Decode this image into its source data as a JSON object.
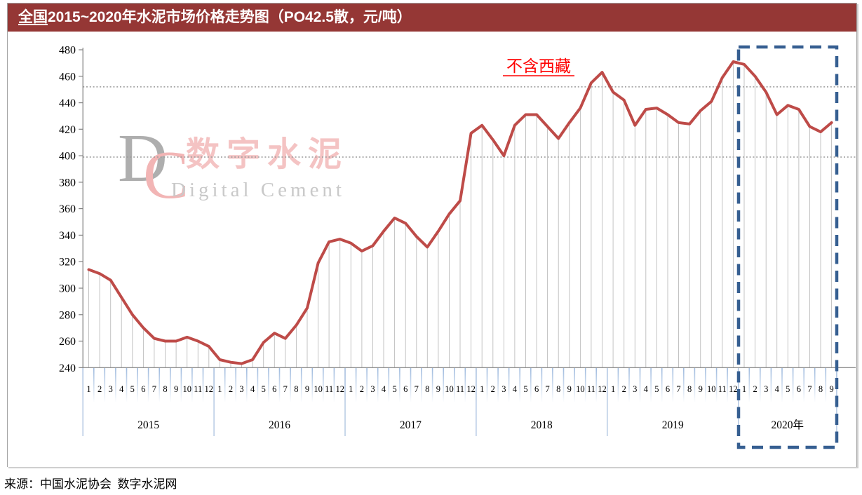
{
  "title": {
    "highlight": "全国",
    "text": "2015~2020年水泥市场价格走势图（PO42.5散，元/吨）"
  },
  "annotation": "不含西藏",
  "source": "来源：中国水泥协会  数字水泥网",
  "watermark": {
    "initial_d": "D",
    "initial_c": "C",
    "cn": "数字水泥",
    "en": "Digital Cement"
  },
  "colors": {
    "title_bar": "#953735",
    "title_text": "#ffffff",
    "line": "#be4b48",
    "drop_line": "#bdbdbd",
    "axis": "#7f7f7f",
    "gridline_dotted": "#9a9a9a",
    "month_tick": "#9ebade",
    "year_separator": "#b1c6e2",
    "dashed_box": "#365f91",
    "annotation_red": "#ff0000"
  },
  "chart_data": {
    "type": "line",
    "title": "全国2015~2020年水泥市场价格走势图（PO42.5散，元/吨）",
    "unit": "元/吨",
    "ylim": [
      240,
      480
    ],
    "ytick_step": 20,
    "reference_lines": [
      452,
      399
    ],
    "legend": "none",
    "grid": "two horizontal dotted reference lines",
    "highlight_year": "2020年",
    "years": [
      {
        "label": "2015",
        "months": [
          "1",
          "2",
          "3",
          "4",
          "5",
          "6",
          "7",
          "8",
          "9",
          "10",
          "11",
          "12"
        ],
        "values": [
          314,
          311,
          306,
          293,
          280,
          270,
          262,
          260,
          260,
          263,
          260,
          256
        ]
      },
      {
        "label": "2016",
        "months": [
          "1",
          "2",
          "3",
          "4",
          "5",
          "6",
          "7",
          "8",
          "9",
          "10",
          "11",
          "12"
        ],
        "values": [
          246,
          244,
          243,
          246,
          259,
          266,
          262,
          272,
          285,
          319,
          335,
          337
        ]
      },
      {
        "label": "2017",
        "months": [
          "1",
          "2",
          "3",
          "4",
          "5",
          "6",
          "7",
          "8",
          "9",
          "10",
          "11",
          "12"
        ],
        "values": [
          334,
          328,
          332,
          343,
          353,
          349,
          339,
          331,
          343,
          356,
          366,
          417
        ]
      },
      {
        "label": "2018",
        "months": [
          "1",
          "2",
          "3",
          "4",
          "5",
          "6",
          "7",
          "8",
          "9",
          "10",
          "11",
          "12"
        ],
        "values": [
          423,
          412,
          400,
          423,
          431,
          431,
          422,
          413,
          425,
          436,
          455,
          463
        ]
      },
      {
        "label": "2019",
        "months": [
          "1",
          "2",
          "3",
          "4",
          "5",
          "6",
          "7",
          "8",
          "9",
          "10",
          "11",
          "12"
        ],
        "values": [
          448,
          442,
          423,
          435,
          436,
          431,
          425,
          424,
          434,
          441,
          459,
          471
        ]
      },
      {
        "label": "2020年",
        "months": [
          "1",
          "2",
          "3",
          "4",
          "5",
          "6",
          "7",
          "8",
          "9"
        ],
        "values": [
          469,
          460,
          448,
          431,
          438,
          435,
          422,
          418,
          425
        ]
      }
    ]
  }
}
